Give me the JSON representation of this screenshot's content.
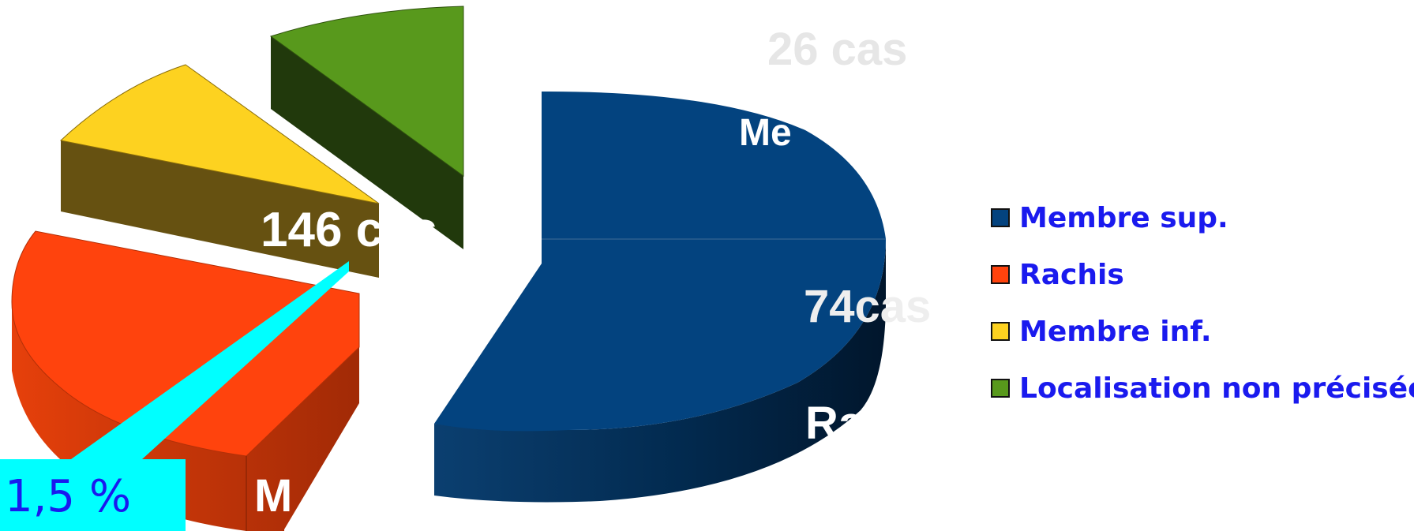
{
  "chart_data": {
    "type": "pie",
    "title": "",
    "categories": [
      "Membre sup.",
      "Rachis",
      "Membre inf.",
      "Localisation non précisée"
    ],
    "values": [
      146,
      74,
      26,
      20
    ],
    "legend_position": "right",
    "colors": [
      "#03437f",
      "#ff430d",
      "#fdd220",
      "#58991c"
    ],
    "data_labels": {
      "membre_sup_count": "146 cas",
      "rachis_count": "74cas",
      "membre_inf_count": "26 cas",
      "membre_sup_partial": "Me",
      "rachis_partial": "Ra",
      "red_partial": "M"
    },
    "callout": "1,5 %"
  }
}
